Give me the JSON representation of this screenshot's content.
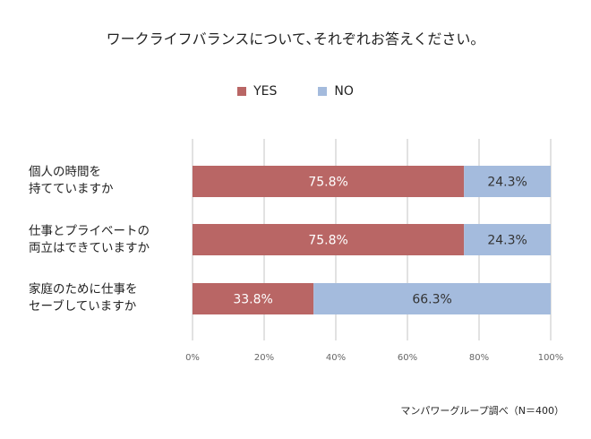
{
  "chart_data": {
    "type": "bar",
    "orientation": "horizontal",
    "stacked": true,
    "title": "ワークライフバランスについて､それぞれお答えください。",
    "categories": [
      [
        "個人の時間を",
        "持てていますか"
      ],
      [
        "仕事とプライベートの",
        "両立はできていますか"
      ],
      [
        "家庭のために仕事を",
        "セーブしていますか"
      ]
    ],
    "series": [
      {
        "name": "YES",
        "color": "#b96665",
        "values": [
          75.8,
          75.8,
          33.8
        ],
        "labels": [
          "75.8%",
          "75.8%",
          "33.8%"
        ]
      },
      {
        "name": "NO",
        "color": "#a4bbdd",
        "values": [
          24.3,
          24.3,
          66.3
        ],
        "labels": [
          "24.3%",
          "24.3%",
          "66.3%"
        ]
      }
    ],
    "xlim": [
      0,
      100
    ],
    "xticks": [
      "0%",
      "20%",
      "40%",
      "60%",
      "80%",
      "100%"
    ],
    "grid": true,
    "legend": "top",
    "source": "マンパワーグループ調べ（N＝400）"
  }
}
